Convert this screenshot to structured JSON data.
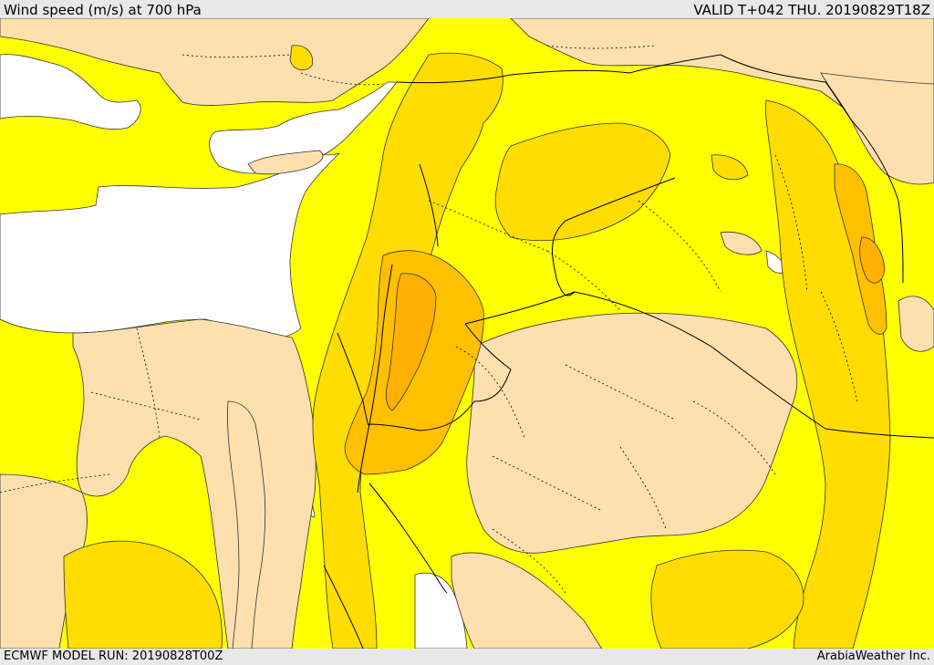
{
  "header": {
    "title": "Wind speed (m/s) at 700 hPa",
    "valid_time": "VALID T+042 THU. 20190829T18Z"
  },
  "footer": {
    "model_run": "ECMWF MODEL RUN: 20190828T00Z",
    "credit": "ArabiaWeather Inc."
  },
  "colors": {
    "sea": "#ffffff",
    "light_wind": "#fde0ae",
    "moderate_wind": "#ffff00",
    "stronger_wind": "#ffdd00",
    "strong_wind": "#ffc000",
    "strongest_wind": "#ffb000",
    "boundaries": "#000000"
  }
}
